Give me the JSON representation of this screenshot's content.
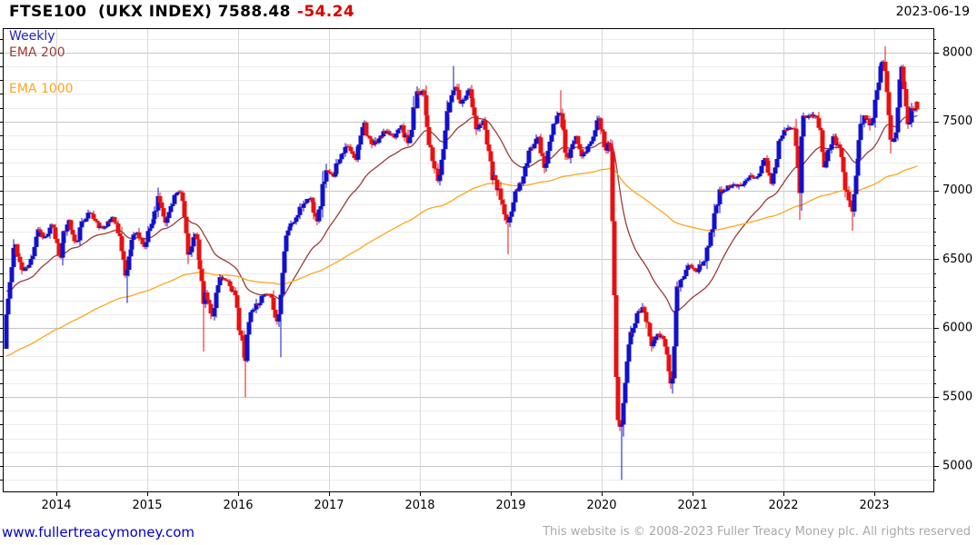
{
  "header": {
    "instrument": "FTSE100  (UKX INDEX)",
    "last_price": "7588.48",
    "change": "-54.24",
    "change_color": "#dd0000",
    "date": "2023-06-19"
  },
  "legend": {
    "items": [
      {
        "label": "Weekly",
        "color": "#2222bb"
      },
      {
        "label": "EMA 200",
        "color": "#993b3b"
      },
      {
        "label": "EMA 1000",
        "color": "#ffa41c"
      }
    ]
  },
  "footer": {
    "website": "www.fullertreacymoney.com",
    "copyright": "This website is © 2008-2023 Fuller Treacy Money plc. All rights reserved"
  },
  "chart_data": {
    "type": "candlestick",
    "timeframe": "weekly",
    "title": "FTSE100 (UKX INDEX)",
    "last_price": 7588.48,
    "change_value": -54.24,
    "series_names": [
      "Weekly",
      "EMA 200",
      "EMA 1000"
    ],
    "axes": {
      "x_ticks": [
        2014,
        2015,
        2016,
        2017,
        2018,
        2019,
        2020,
        2021,
        2022,
        2023
      ],
      "y_ticks": [
        5000,
        5500,
        6000,
        6500,
        7000,
        7500,
        8000
      ]
    },
    "xlim": [
      2013.41,
      2023.65
    ],
    "ylim": [
      4815,
      8178
    ],
    "grid": {
      "minor_step": 100,
      "major_step": 500,
      "minor_color": "#ececec",
      "major_color": "#c6c6c6",
      "year_color": "#d8d8d8"
    },
    "colors": {
      "up": "#1111cc",
      "down": "#e81111",
      "ema200": "#993b3b",
      "ema1000": "#ffa41c",
      "axis": "#000000"
    },
    "series": {
      "close_anchors": [
        [
          2013.45,
          6100
        ],
        [
          2013.54,
          6620
        ],
        [
          2013.63,
          6410
        ],
        [
          2013.71,
          6460
        ],
        [
          2013.79,
          6730
        ],
        [
          2013.88,
          6650
        ],
        [
          2013.96,
          6749
        ],
        [
          2014.04,
          6510
        ],
        [
          2014.13,
          6810
        ],
        [
          2014.21,
          6598
        ],
        [
          2014.29,
          6780
        ],
        [
          2014.38,
          6844
        ],
        [
          2014.46,
          6744
        ],
        [
          2014.54,
          6730
        ],
        [
          2014.63,
          6820
        ],
        [
          2014.71,
          6623
        ],
        [
          2014.77,
          6340
        ],
        [
          2014.79,
          6546
        ],
        [
          2014.88,
          6723
        ],
        [
          2014.96,
          6566
        ],
        [
          2015.04,
          6749
        ],
        [
          2015.13,
          6947
        ],
        [
          2015.21,
          6773
        ],
        [
          2015.29,
          6961
        ],
        [
          2015.38,
          6984
        ],
        [
          2015.46,
          6521
        ],
        [
          2015.54,
          6696
        ],
        [
          2015.62,
          6187
        ],
        [
          2015.65,
          6247
        ],
        [
          2015.71,
          6062
        ],
        [
          2015.79,
          6361
        ],
        [
          2015.88,
          6356
        ],
        [
          2015.96,
          6242
        ],
        [
          2016.04,
          5900
        ],
        [
          2016.08,
          5707
        ],
        [
          2016.12,
          6097
        ],
        [
          2016.21,
          6175
        ],
        [
          2016.29,
          6242
        ],
        [
          2016.38,
          6231
        ],
        [
          2016.42,
          6021
        ],
        [
          2016.46,
          6138
        ],
        [
          2016.5,
          6578
        ],
        [
          2016.54,
          6724
        ],
        [
          2016.63,
          6782
        ],
        [
          2016.71,
          6899
        ],
        [
          2016.79,
          6954
        ],
        [
          2016.88,
          6784
        ],
        [
          2016.96,
          7143
        ],
        [
          2017.04,
          7099
        ],
        [
          2017.13,
          7263
        ],
        [
          2017.21,
          7323
        ],
        [
          2017.29,
          7204
        ],
        [
          2017.38,
          7520
        ],
        [
          2017.46,
          7313
        ],
        [
          2017.54,
          7372
        ],
        [
          2017.63,
          7431
        ],
        [
          2017.71,
          7373
        ],
        [
          2017.79,
          7493
        ],
        [
          2017.88,
          7327
        ],
        [
          2017.96,
          7688
        ],
        [
          2018.04,
          7734
        ],
        [
          2018.09,
          7443
        ],
        [
          2018.13,
          7232
        ],
        [
          2018.21,
          7057
        ],
        [
          2018.29,
          7509
        ],
        [
          2018.38,
          7778
        ],
        [
          2018.46,
          7637
        ],
        [
          2018.54,
          7749
        ],
        [
          2018.63,
          7432
        ],
        [
          2018.71,
          7510
        ],
        [
          2018.79,
          7128
        ],
        [
          2018.88,
          6980
        ],
        [
          2018.96,
          6728
        ],
        [
          2019.04,
          6969
        ],
        [
          2019.13,
          7075
        ],
        [
          2019.21,
          7279
        ],
        [
          2019.29,
          7418
        ],
        [
          2019.38,
          7162
        ],
        [
          2019.46,
          7426
        ],
        [
          2019.54,
          7587
        ],
        [
          2019.63,
          7207
        ],
        [
          2019.71,
          7408
        ],
        [
          2019.79,
          7248
        ],
        [
          2019.88,
          7347
        ],
        [
          2019.96,
          7542
        ],
        [
          2020.04,
          7286
        ],
        [
          2020.1,
          7403
        ],
        [
          2020.13,
          6581
        ],
        [
          2020.17,
          5366
        ],
        [
          2020.21,
          5191
        ],
        [
          2020.24,
          5510
        ],
        [
          2020.29,
          5901
        ],
        [
          2020.38,
          6077
        ],
        [
          2020.46,
          6170
        ],
        [
          2020.54,
          5898
        ],
        [
          2020.63,
          5964
        ],
        [
          2020.71,
          5866
        ],
        [
          2020.77,
          5577
        ],
        [
          2020.83,
          6266
        ],
        [
          2020.96,
          6461
        ],
        [
          2021.04,
          6407
        ],
        [
          2021.13,
          6483
        ],
        [
          2021.21,
          6714
        ],
        [
          2021.29,
          6970
        ],
        [
          2021.38,
          7023
        ],
        [
          2021.46,
          7037
        ],
        [
          2021.54,
          7032
        ],
        [
          2021.63,
          7120
        ],
        [
          2021.71,
          7086
        ],
        [
          2021.79,
          7238
        ],
        [
          2021.88,
          7059
        ],
        [
          2021.96,
          7385
        ],
        [
          2022.04,
          7464
        ],
        [
          2022.13,
          7458
        ],
        [
          2022.18,
          6987
        ],
        [
          2022.21,
          7516
        ],
        [
          2022.29,
          7545
        ],
        [
          2022.38,
          7533
        ],
        [
          2022.46,
          7169
        ],
        [
          2022.54,
          7423
        ],
        [
          2022.63,
          7284
        ],
        [
          2022.71,
          6894
        ],
        [
          2022.76,
          6859
        ],
        [
          2022.79,
          7095
        ],
        [
          2022.88,
          7573
        ],
        [
          2022.96,
          7452
        ],
        [
          2023.04,
          7772
        ],
        [
          2023.09,
          7947
        ],
        [
          2023.13,
          7876
        ],
        [
          2023.18,
          7335
        ],
        [
          2023.23,
          7405
        ],
        [
          2023.29,
          7870
        ],
        [
          2023.33,
          7772
        ],
        [
          2023.38,
          7446
        ],
        [
          2023.42,
          7607
        ],
        [
          2023.47,
          7588.48
        ]
      ],
      "extremes": [
        [
          2013.45,
          "low",
          6023
        ],
        [
          2014.77,
          "low",
          6183
        ],
        [
          2015.63,
          "low",
          5830
        ],
        [
          2016.08,
          "low",
          5500
        ],
        [
          2016.46,
          "low",
          5789
        ],
        [
          2018.37,
          "high",
          7903
        ],
        [
          2018.96,
          "low",
          6537
        ],
        [
          2019.55,
          "high",
          7727
        ],
        [
          2020.21,
          "low",
          4899
        ],
        [
          2020.77,
          "low",
          5525
        ],
        [
          2022.18,
          "low",
          6787
        ],
        [
          2022.75,
          "low",
          6707
        ],
        [
          2023.12,
          "high",
          8047
        ]
      ],
      "ema200": {
        "label": "EMA 200",
        "start": 6280,
        "period_weeks": 40
      },
      "ema1000": {
        "label": "EMA 1000",
        "start": 5795,
        "period_weeks": 200
      }
    },
    "render": {
      "weeks_per_year": 52,
      "noise_seed": 11,
      "candle_width": 5
    }
  }
}
